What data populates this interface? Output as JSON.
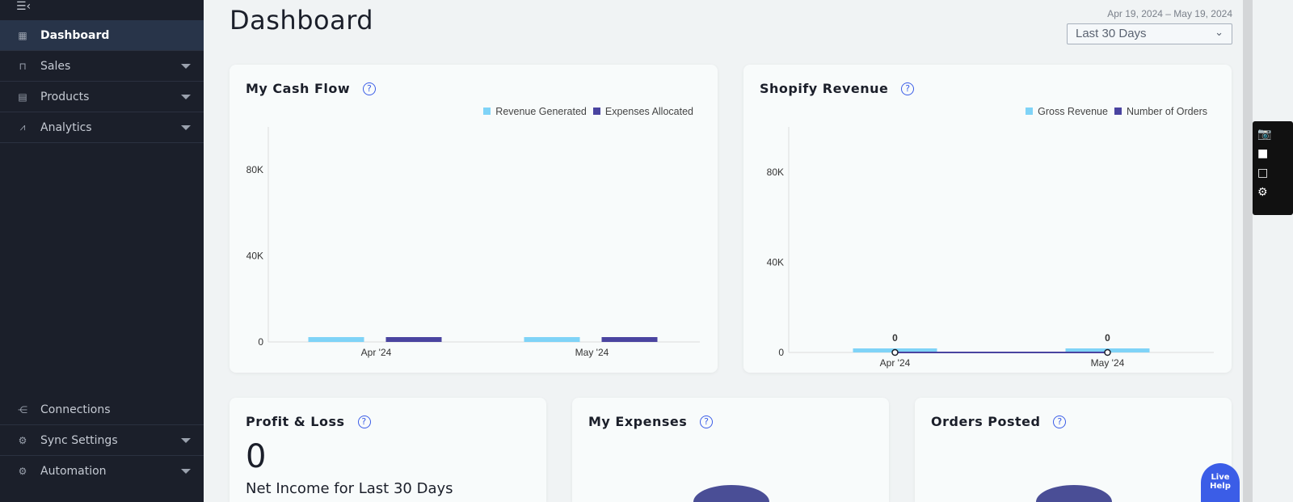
{
  "sidebar": {
    "items": [
      {
        "label": "Dashboard",
        "icon": "grid-icon"
      },
      {
        "label": "Sales",
        "icon": "bag-icon"
      },
      {
        "label": "Products",
        "icon": "box-icon"
      },
      {
        "label": "Analytics",
        "icon": "chart-line-icon"
      }
    ],
    "bottom_items": [
      {
        "label": "Connections",
        "icon": "connections-icon"
      },
      {
        "label": "Sync Settings",
        "icon": "gear-icon"
      },
      {
        "label": "Automation",
        "icon": "automation-icon"
      }
    ]
  },
  "header": {
    "title": "Dashboard",
    "date_range": "Apr 19, 2024 – May 19, 2024",
    "period_select": "Last 30 Days"
  },
  "cards": {
    "cash_flow": {
      "title": "My Cash Flow"
    },
    "shopify": {
      "title": "Shopify Revenue"
    },
    "pnl": {
      "title": "Profit & Loss",
      "value": "0",
      "subtitle": "Net Income for Last 30 Days"
    },
    "expenses": {
      "title": "My Expenses"
    },
    "orders": {
      "title": "Orders Posted"
    }
  },
  "live_help": {
    "line1": "Live",
    "line2": "Help"
  },
  "chart_data": [
    {
      "type": "bar",
      "title": "My Cash Flow",
      "categories": [
        "Apr '24",
        "May '24"
      ],
      "series": [
        {
          "name": "Revenue Generated",
          "color": "#7fd3f7",
          "values": [
            0,
            0
          ]
        },
        {
          "name": "Expenses Allocated",
          "color": "#4a44a0",
          "values": [
            0,
            0
          ]
        }
      ],
      "ylim": [
        0,
        100000
      ],
      "yticks": [
        "0",
        "40K",
        "80K"
      ],
      "ytick_values": [
        0,
        40000,
        80000
      ]
    },
    {
      "type": "bar",
      "title": "Shopify Revenue",
      "categories": [
        "Apr '24",
        "May '24"
      ],
      "series": [
        {
          "name": "Gross Revenue",
          "color": "#7fd3f7",
          "values": [
            0,
            0
          ],
          "labels": [
            "0",
            "0"
          ]
        },
        {
          "name": "Number of Orders",
          "color": "#4a44a0",
          "type": "line",
          "values": [
            0,
            0
          ]
        }
      ],
      "ylim": [
        0,
        100000
      ],
      "yticks": [
        "0",
        "40K",
        "80K"
      ],
      "ytick_values": [
        0,
        40000,
        80000
      ]
    }
  ]
}
